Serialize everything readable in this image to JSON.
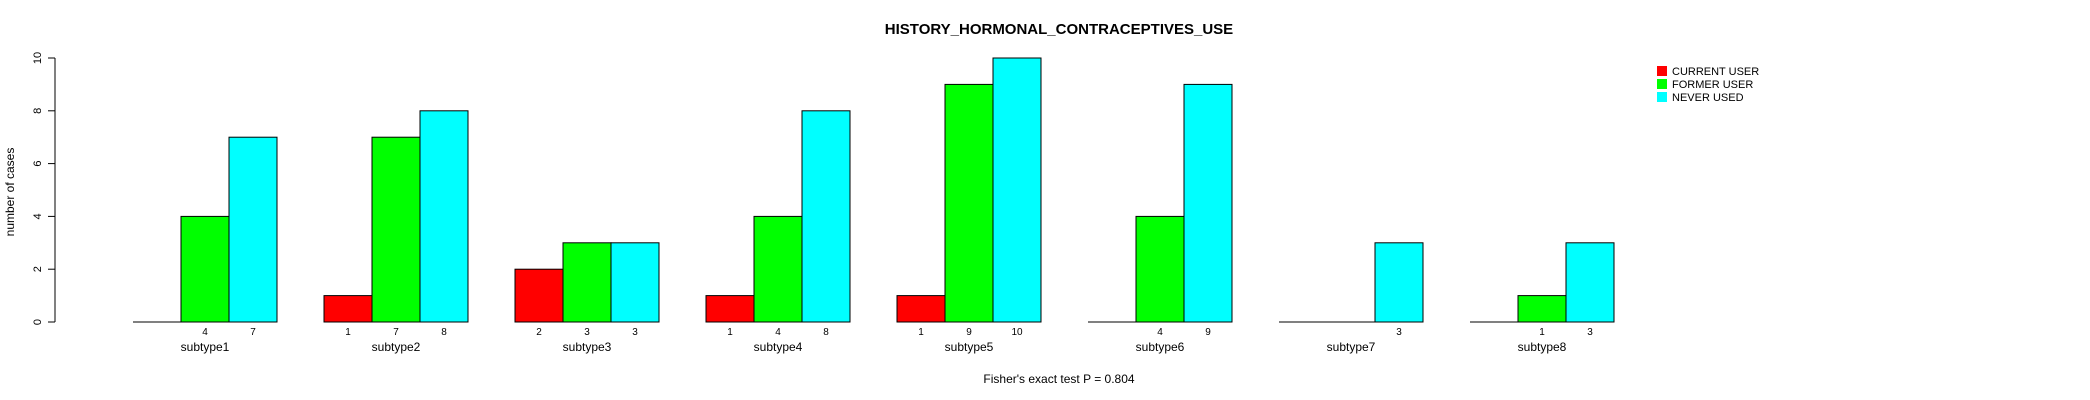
{
  "chart_data": {
    "type": "bar",
    "title": "HISTORY_HORMONAL_CONTRACEPTIVES_USE",
    "ylabel": "number of cases",
    "xlabel": "",
    "footer": "Fisher's exact test P = 0.804",
    "ylim": [
      0,
      10
    ],
    "yticks": [
      0,
      2,
      4,
      6,
      8,
      10
    ],
    "categories": [
      "subtype1",
      "subtype2",
      "subtype3",
      "subtype4",
      "subtype5",
      "subtype6",
      "subtype7",
      "subtype8"
    ],
    "series": [
      {
        "name": "CURRENT USER",
        "color": "#ff0000",
        "values": [
          0,
          1,
          2,
          1,
          1,
          0,
          0,
          0
        ]
      },
      {
        "name": "FORMER USER",
        "color": "#00ff00",
        "values": [
          4,
          7,
          3,
          4,
          9,
          4,
          0,
          1
        ]
      },
      {
        "name": "NEVER USED",
        "color": "#00ffff",
        "values": [
          7,
          8,
          3,
          8,
          10,
          9,
          3,
          3
        ]
      }
    ],
    "legend_position": "top-right",
    "grid": false
  }
}
